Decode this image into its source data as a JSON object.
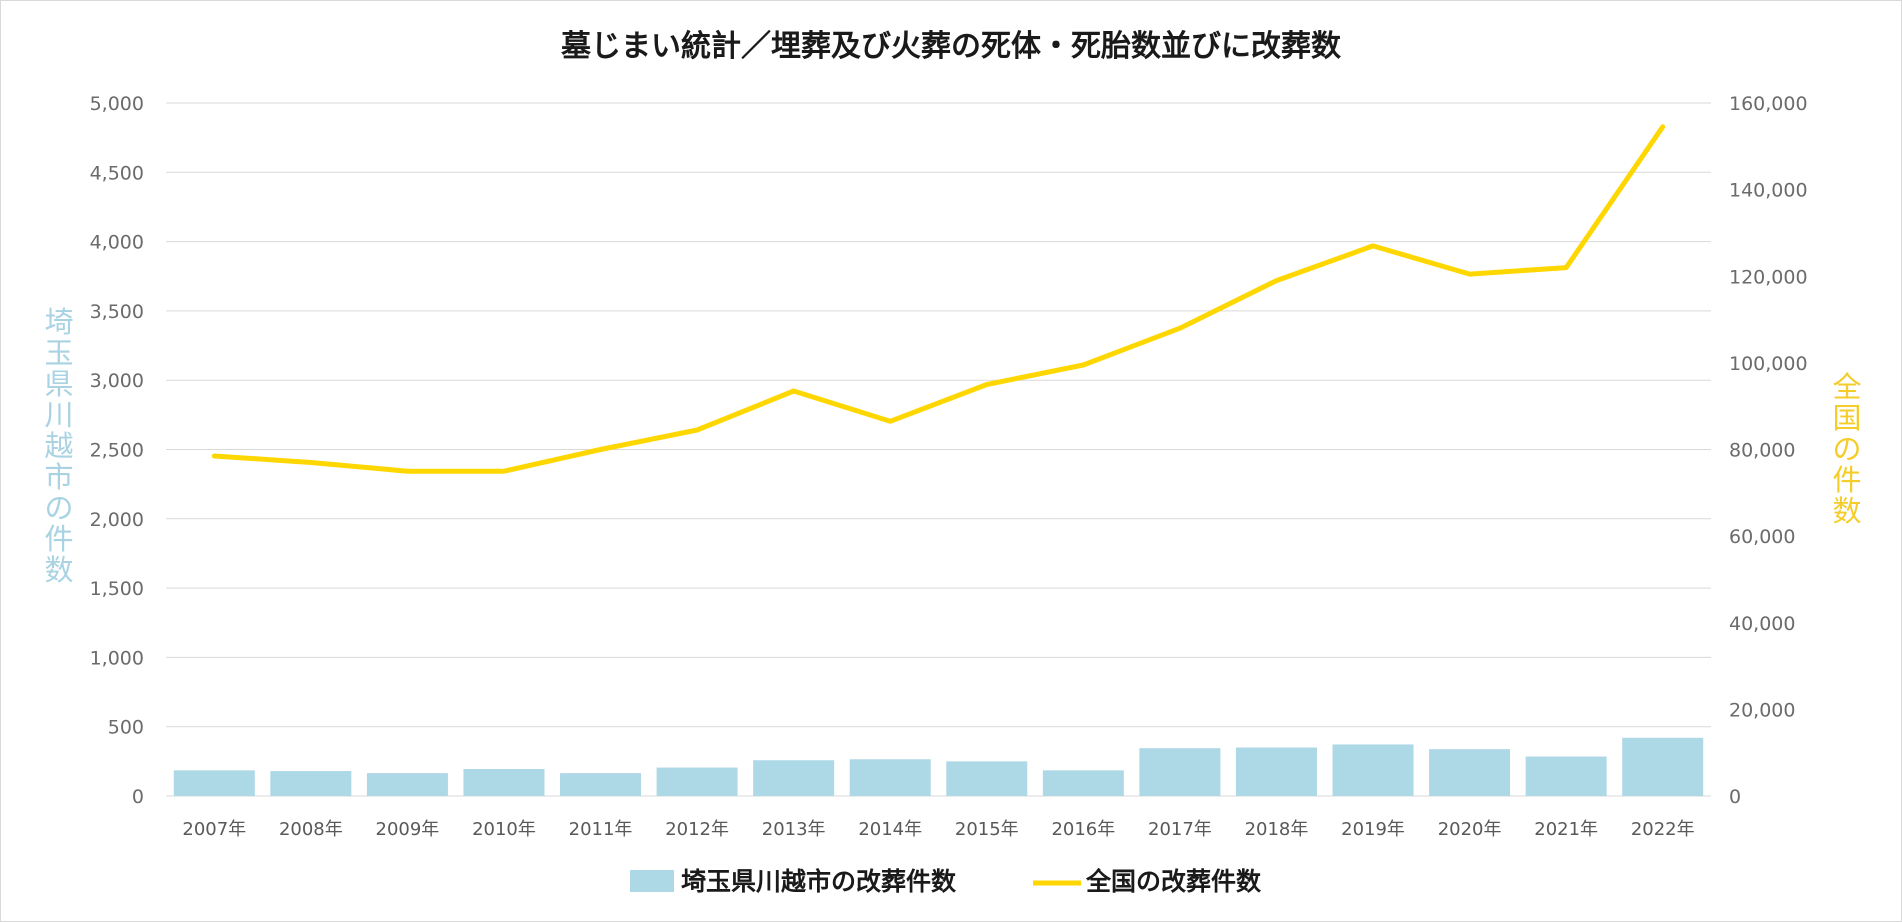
{
  "colors": {
    "bar": "#add8e6",
    "line": "#ffd700",
    "grid": "#d9d9d9",
    "left_axis_title": "#a9d3e3",
    "right_axis_title": "#f5cd2a"
  },
  "chart_data": {
    "type": "bar+line",
    "title": "墓じまい統計／埋葬及び火葬の死体・死胎数並びに改葬数",
    "categories": [
      "2007年",
      "2008年",
      "2009年",
      "2010年",
      "2011年",
      "2012年",
      "2013年",
      "2014年",
      "2015年",
      "2016年",
      "2017年",
      "2018年",
      "2019年",
      "2020年",
      "2021年",
      "2022年"
    ],
    "series": [
      {
        "name": "埼玉県川越市の改葬件数",
        "type": "bar",
        "axis": "left",
        "values": [
          185,
          180,
          165,
          195,
          165,
          205,
          258,
          265,
          250,
          185,
          345,
          350,
          372,
          338,
          285,
          420
        ]
      },
      {
        "name": "全国の改葬件数",
        "type": "line",
        "axis": "right",
        "values": [
          78500,
          77000,
          75000,
          75000,
          80000,
          84500,
          93500,
          86500,
          95000,
          99500,
          108000,
          119000,
          127000,
          120500,
          122000,
          154500
        ]
      }
    ],
    "y_left": {
      "label": "埼玉県川越市の件数",
      "range": [
        0,
        5000
      ],
      "ticks": [
        "0",
        "500",
        "1,000",
        "1,500",
        "2,000",
        "2,500",
        "3,000",
        "3,500",
        "4,000",
        "4,500",
        "5,000"
      ]
    },
    "y_right": {
      "label": "全国の件数",
      "range": [
        0,
        160000
      ],
      "ticks": [
        "0",
        "20,000",
        "40,000",
        "60,000",
        "80,000",
        "100,000",
        "120,000",
        "140,000",
        "160,000"
      ]
    },
    "grid": true,
    "legend_position": "bottom"
  }
}
